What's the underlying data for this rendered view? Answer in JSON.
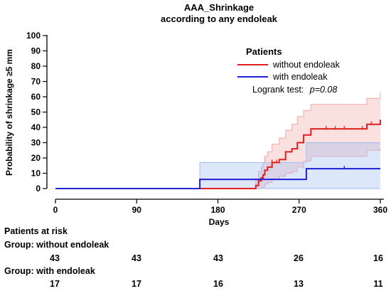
{
  "chart_data": {
    "type": "line",
    "title": "AAA_Shrinkage",
    "subtitle": "according to any endoleak",
    "xlabel": "Days",
    "ylabel": "Probability of shrinkage ≥5 mm",
    "xlim": [
      0,
      360
    ],
    "ylim": [
      0,
      100
    ],
    "x_ticks": [
      "0",
      "90",
      "180",
      "270",
      "360"
    ],
    "y_ticks": [
      "0",
      "10",
      "20",
      "30",
      "40",
      "50",
      "60",
      "70",
      "80",
      "90",
      "100"
    ],
    "grid": false,
    "legend": {
      "title": "Patients",
      "placement": "top-right",
      "note_prefix": "Logrank test:",
      "note_value": "p=0.08"
    },
    "series": [
      {
        "name": "without endoleak",
        "color": "#e02020",
        "band_color": "#f4a6a6",
        "step_x": [
          0,
          222,
          225,
          228,
          230,
          232,
          235,
          240,
          248,
          255,
          262,
          268,
          275,
          283,
          290,
          345,
          360
        ],
        "step_y": [
          0,
          2,
          5,
          7,
          9,
          12,
          14,
          17,
          19,
          24,
          26,
          30,
          35,
          39,
          39,
          42,
          45
        ],
        "lower": [
          0,
          0,
          0,
          0,
          1,
          3,
          4,
          6,
          8,
          10,
          11,
          14,
          18,
          21,
          21,
          25,
          26
        ],
        "upper": [
          0,
          6,
          11,
          14,
          17,
          21,
          24,
          29,
          33,
          38,
          42,
          47,
          51,
          55,
          55,
          59,
          63
        ],
        "censor_x": [
          240,
          245,
          300,
          310,
          320,
          340,
          350
        ]
      },
      {
        "name": "with endoleak",
        "color": "#1f1fd6",
        "band_color": "#9dbbf0",
        "step_x": [
          0,
          160,
          278,
          360
        ],
        "step_y": [
          0,
          6,
          13,
          13
        ],
        "lower": [
          0,
          0,
          0,
          0
        ],
        "upper": [
          0,
          17,
          30,
          30
        ],
        "censor_x": [
          320
        ]
      }
    ]
  },
  "risk_table": {
    "title": "Patients at risk",
    "groups": [
      {
        "label": "Group: without endoleak",
        "counts": [
          "43",
          "43",
          "43",
          "26",
          "16"
        ]
      },
      {
        "label": "Group: with endoleak",
        "counts": [
          "17",
          "17",
          "16",
          "13",
          "11"
        ]
      }
    ]
  }
}
